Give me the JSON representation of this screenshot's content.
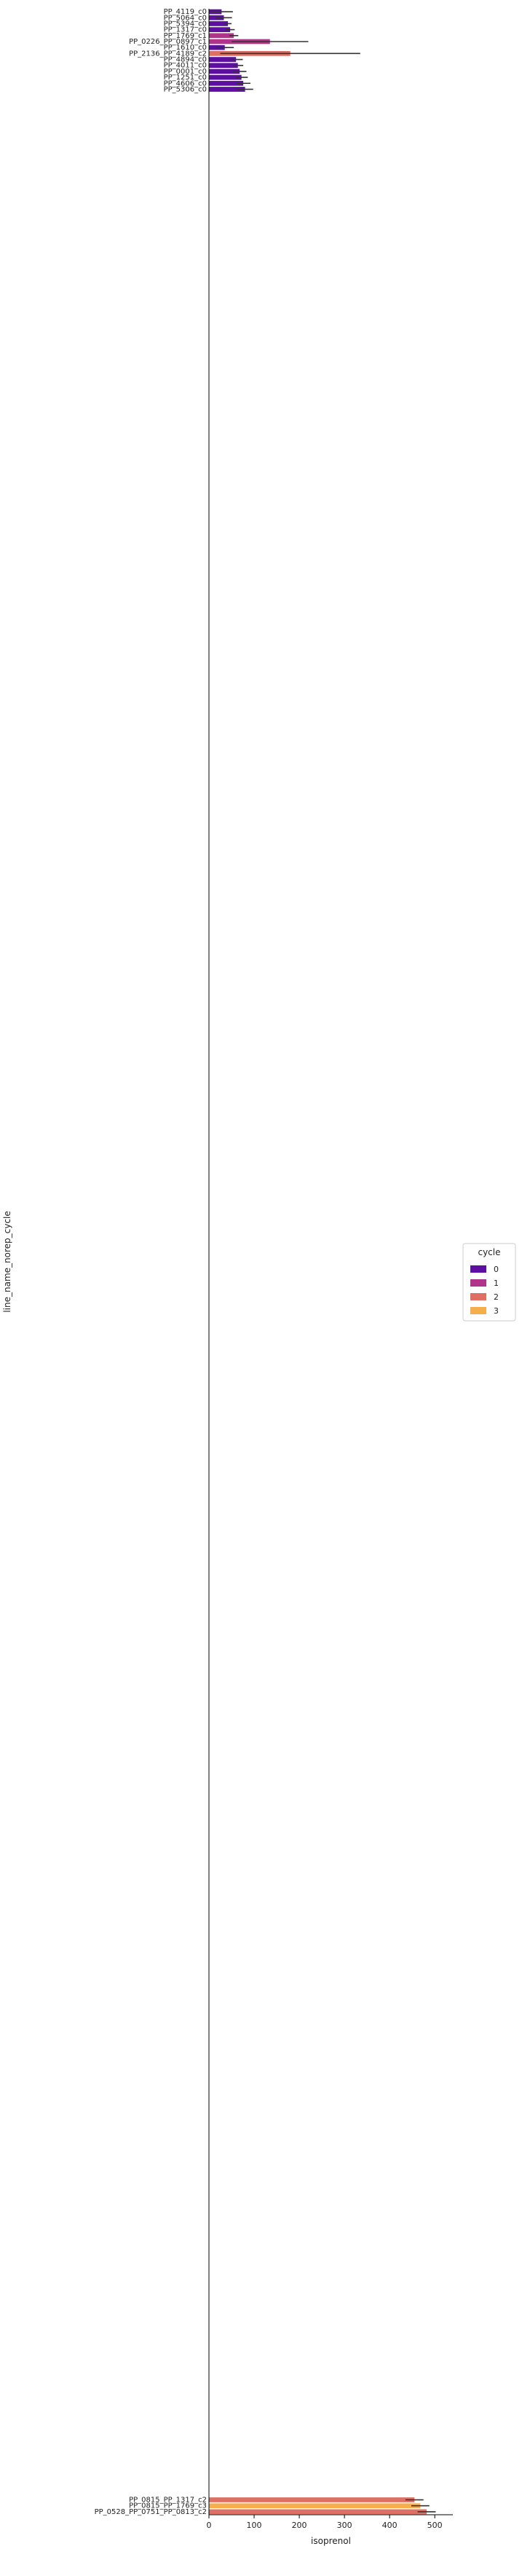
{
  "chart_data": {
    "type": "bar",
    "orientation": "horizontal",
    "xlabel": "isoprenol",
    "ylabel": "line_name_norep_cycle",
    "xlim": [
      0,
      540
    ],
    "xticks": [
      0,
      100,
      200,
      300,
      400,
      500
    ],
    "grid": false,
    "legend": {
      "title": "cycle",
      "placement": "right",
      "entries": [
        {
          "label": "0",
          "color": "#5c0fa0"
        },
        {
          "label": "1",
          "color": "#b0348a"
        },
        {
          "label": "2",
          "color": "#df6e63"
        },
        {
          "label": "3",
          "color": "#f5ae4b"
        }
      ]
    },
    "visible_categories_top": [
      "PP_4119_c0",
      "PP_5064_c0",
      "PP_5394_c0",
      "PP_1317_c0",
      "PP_1769_c1",
      "PP_0226_PP_0897_c1",
      "PP_1610_c0",
      "PP_2136_PP_4189_c2",
      "PP_4894_c0",
      "PP_4011_c0",
      "PP_0001_c0",
      "PP_1251_c0",
      "PP_4606_c0",
      "PP_5306_c0"
    ],
    "visible_categories_bottom": [
      "PP_0815_PP_1317_c2",
      "PP_0815_PP_1769_c3",
      "PP_0528_PP_0751_PP_0813_c2"
    ],
    "bars": [
      {
        "cycle": 0,
        "value": 28,
        "err": 25
      },
      {
        "cycle": 0,
        "value": 33,
        "err": 18
      },
      {
        "cycle": 0,
        "value": 42,
        "err": 8
      },
      {
        "cycle": 0,
        "value": 47,
        "err": 10
      },
      {
        "cycle": 1,
        "value": 55,
        "err": 10
      },
      {
        "cycle": 1,
        "value": 135,
        "err": 85
      },
      {
        "cycle": 0,
        "value": 35,
        "err": 20
      },
      {
        "cycle": 2,
        "value": 180,
        "err": 155
      },
      {
        "cycle": 0,
        "value": 60,
        "err": 15
      },
      {
        "cycle": 0,
        "value": 64,
        "err": 12
      },
      {
        "cycle": 0,
        "value": 68,
        "err": 15
      },
      {
        "cycle": 0,
        "value": 72,
        "err": 14
      },
      {
        "cycle": 0,
        "value": 76,
        "err": 16
      },
      {
        "cycle": 0,
        "value": 80,
        "err": 18
      }
    ]
  }
}
